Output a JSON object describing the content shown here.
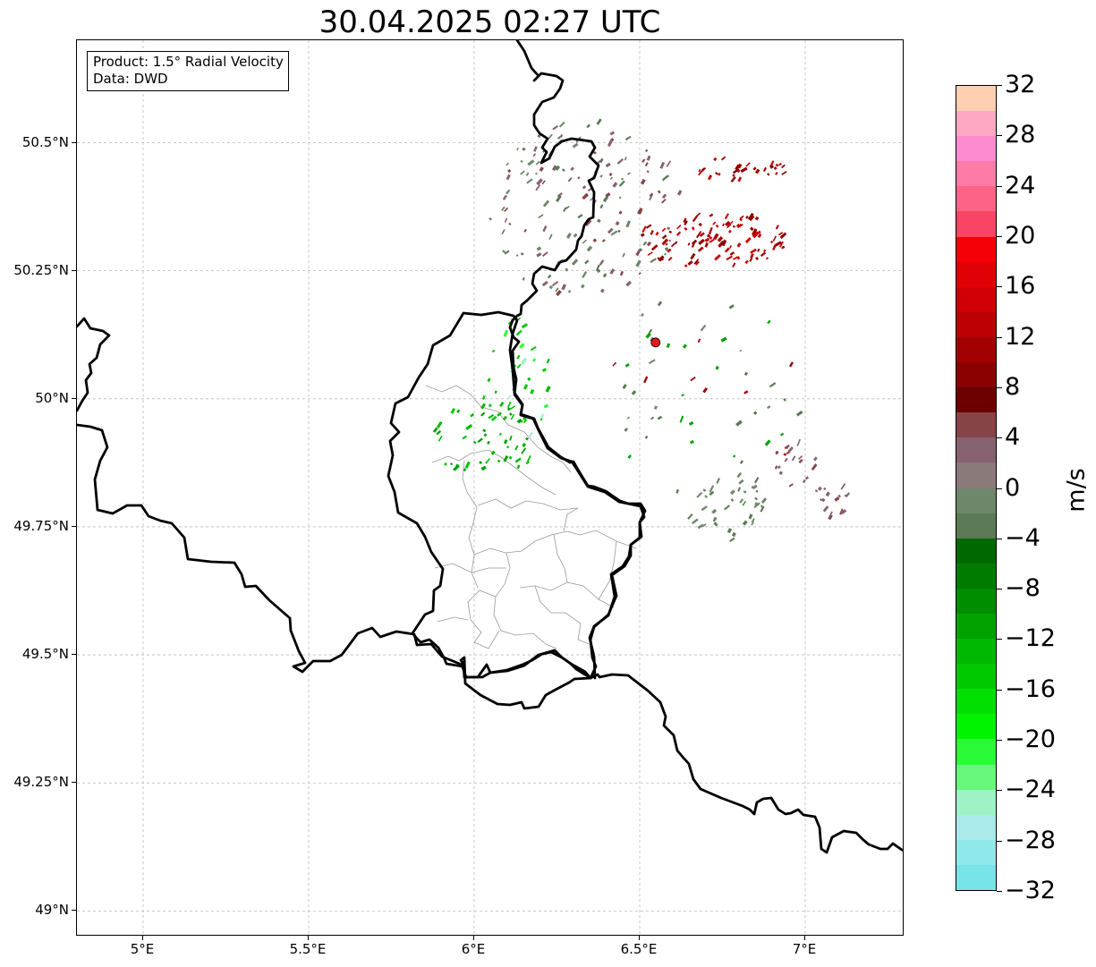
{
  "title": "30.04.2025 02:27 UTC",
  "info": {
    "line1": "Product: 1.5° Radial Velocity",
    "line2": "Data: DWD"
  },
  "map": {
    "lon_range": [
      4.8,
      7.3
    ],
    "lat_range": [
      48.95,
      50.7
    ],
    "lat_ticks": [
      {
        "value": 50.5,
        "label": "50.5°N"
      },
      {
        "value": 50.25,
        "label": "50.25°N"
      },
      {
        "value": 50.0,
        "label": "50°N"
      },
      {
        "value": 49.75,
        "label": "49.75°N"
      },
      {
        "value": 49.5,
        "label": "49.5°N"
      },
      {
        "value": 49.25,
        "label": "49.25°N"
      },
      {
        "value": 49.0,
        "label": "49°N"
      }
    ],
    "lon_ticks": [
      {
        "value": 5.0,
        "label": "5°E"
      },
      {
        "value": 5.5,
        "label": "5.5°E"
      },
      {
        "value": 6.0,
        "label": "6°E"
      },
      {
        "value": 6.5,
        "label": "6.5°E"
      },
      {
        "value": 7.0,
        "label": "7°E"
      }
    ],
    "grid": true,
    "radar_site": {
      "lon": 6.548,
      "lat": 50.11,
      "color": "#e31a1c"
    }
  },
  "colorbar": {
    "unit": "m/s",
    "min": -32,
    "max": 32,
    "tick_labels": [
      "32",
      "28",
      "24",
      "20",
      "16",
      "12",
      "8",
      "4",
      "0",
      "−4",
      "−8",
      "−12",
      "−16",
      "−20",
      "−24",
      "−28",
      "−32"
    ],
    "colors_top_to_bottom": [
      "#fecfb1",
      "#fea8c3",
      "#fd8bd0",
      "#fc7ba7",
      "#fc6386",
      "#f94465",
      "#f50006",
      "#e00006",
      "#d00006",
      "#bc0004",
      "#a30002",
      "#8b0000",
      "#6c0000",
      "#864448",
      "#866270",
      "#8a7a7a",
      "#6e876a",
      "#5c7a55",
      "#006800",
      "#007b00",
      "#008d00",
      "#00a200",
      "#00b800",
      "#00c900",
      "#00e000",
      "#00f400",
      "#28fb35",
      "#66f77b",
      "#9ef2c6",
      "#abe9ea",
      "#8fe8ea",
      "#77e4e7"
    ]
  }
}
